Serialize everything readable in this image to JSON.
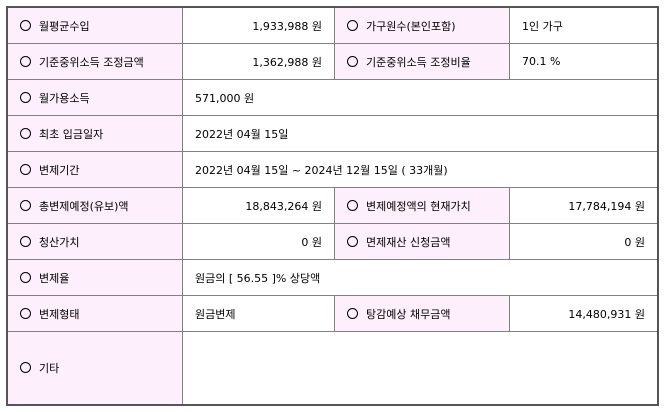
{
  "rows": [
    {
      "l1": "월평균수입",
      "v1": "1,933,988 원",
      "l2": "가구원수(본인포함)",
      "v2": "1인 가구"
    },
    {
      "l1": "기준중위소득 조정금액",
      "v1": "1,362,988 원",
      "l2": "기준중위소득 조정비율",
      "v2": "70.1 %"
    },
    {
      "l1": "월가용소득",
      "v1": "571,000 원"
    },
    {
      "l1": "최초 입금일자",
      "v1": "2022년 04월 15일"
    },
    {
      "l1": "변제기간",
      "v1": "2022년 04월 15일 ~ 2024년 12월 15일 ( 33개월)"
    },
    {
      "l1": "총변제예정(유보)액",
      "v1": "18,843,264 원",
      "l2": "변제예정액의 현재가치",
      "v2": "17,784,194 원"
    },
    {
      "l1": "청산가치",
      "v1": "0 원",
      "l2": "면제재산 신청금액",
      "v2": "0 원"
    },
    {
      "l1": "변제율",
      "v1": "원금의 [ 56.55 ]% 상당액"
    },
    {
      "l1": "변제형태",
      "v1": "원금변제",
      "l2": "탕감예상 채무금액",
      "v2": "14,480,931 원"
    },
    {
      "l1": "기타",
      "v1": ""
    }
  ]
}
